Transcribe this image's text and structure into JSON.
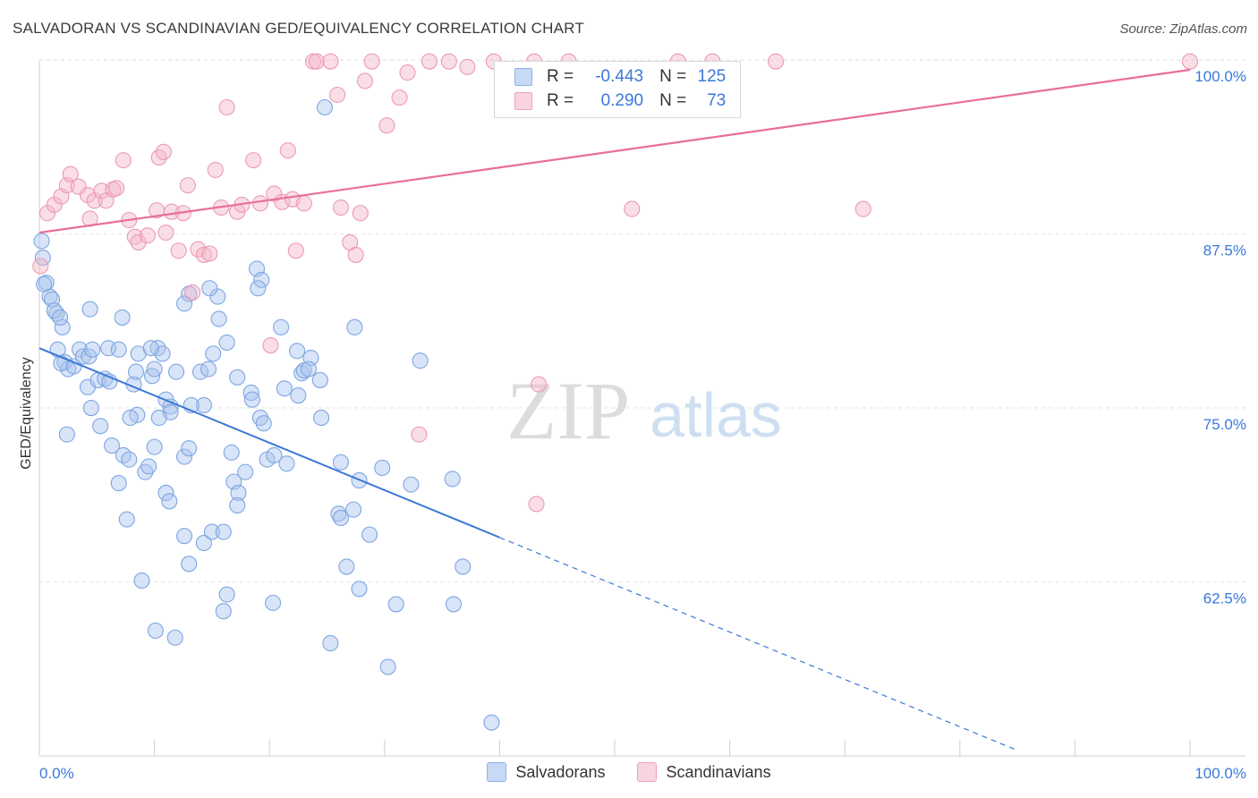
{
  "title": "SALVADORAN VS SCANDINAVIAN GED/EQUIVALENCY CORRELATION CHART",
  "source": "Source: ZipAtlas.com",
  "watermark": {
    "zip": "ZIP",
    "atlas": "atlas"
  },
  "legend": {
    "rows": [
      {
        "r_label": "R =",
        "r_value": "-0.443",
        "n_label": "N =",
        "n_value": "125",
        "color": "#a9c4ee"
      },
      {
        "r_label": "R =",
        "r_value": "0.290",
        "n_label": "N =",
        "n_value": "73",
        "color": "#f4b6c8"
      }
    ]
  },
  "bottom_legend": [
    {
      "label": "Salvadorans",
      "color": "#a9c4ee"
    },
    {
      "label": "Scandinavians",
      "color": "#f4b6c8"
    }
  ],
  "chart_data": {
    "type": "scatter",
    "title": "SALVADORAN VS SCANDINAVIAN GED/EQUIVALENCY CORRELATION CHART",
    "xlabel": "",
    "ylabel": "GED/Equivalency",
    "xlim": [
      0,
      100
    ],
    "ylim": [
      50,
      100
    ],
    "x_tick_labels": [
      "0.0%",
      "100.0%"
    ],
    "y_ticks": [
      62.5,
      75.0,
      87.5,
      100.0
    ],
    "y_tick_labels": [
      "62.5%",
      "75.0%",
      "87.5%",
      "100.0%"
    ],
    "grid": true,
    "legend_position": "top-center",
    "colors": {
      "salvadorans": "#3a78d6",
      "scandinavians": "#e86f98"
    },
    "series": [
      {
        "name": "Salvadorans",
        "trend": {
          "x0": 0,
          "y0": 79.3,
          "x1": 40,
          "y1": 65.7,
          "dash_to_x": 85,
          "dash_to_y": 50.4
        },
        "points": [
          [
            0.2,
            87.0
          ],
          [
            0.3,
            85.8
          ],
          [
            0.6,
            84.0
          ],
          [
            0.9,
            83.0
          ],
          [
            1.1,
            82.8
          ],
          [
            1.5,
            81.8
          ],
          [
            1.3,
            82.0
          ],
          [
            2.0,
            80.8
          ],
          [
            1.6,
            79.2
          ],
          [
            2.2,
            78.3
          ],
          [
            2.5,
            77.8
          ],
          [
            1.9,
            78.2
          ],
          [
            3.5,
            79.2
          ],
          [
            3.0,
            78.0
          ],
          [
            3.8,
            78.7
          ],
          [
            4.3,
            78.7
          ],
          [
            4.6,
            79.2
          ],
          [
            4.2,
            76.5
          ],
          [
            6.0,
            79.3
          ],
          [
            5.1,
            77.0
          ],
          [
            5.7,
            77.1
          ],
          [
            6.1,
            76.9
          ],
          [
            4.5,
            75.0
          ],
          [
            8.2,
            76.7
          ],
          [
            8.5,
            74.5
          ],
          [
            7.9,
            74.3
          ],
          [
            9.8,
            77.3
          ],
          [
            10.3,
            79.3
          ],
          [
            10.7,
            78.9
          ],
          [
            8.4,
            77.6
          ],
          [
            10.0,
            77.8
          ],
          [
            11.0,
            75.6
          ],
          [
            11.9,
            77.6
          ],
          [
            11.4,
            75.1
          ],
          [
            11.4,
            74.7
          ],
          [
            14.0,
            77.6
          ],
          [
            15.1,
            78.9
          ],
          [
            14.3,
            75.2
          ],
          [
            13.2,
            75.2
          ],
          [
            10.4,
            74.3
          ],
          [
            14.7,
            77.8
          ],
          [
            16.3,
            79.7
          ],
          [
            17.2,
            77.2
          ],
          [
            18.4,
            76.1
          ],
          [
            19.2,
            74.3
          ],
          [
            18.5,
            75.6
          ],
          [
            21.3,
            76.4
          ],
          [
            22.8,
            77.5
          ],
          [
            22.5,
            75.9
          ],
          [
            22.4,
            79.1
          ],
          [
            21.0,
            80.8
          ],
          [
            23.6,
            78.6
          ],
          [
            24.4,
            77.0
          ],
          [
            24.5,
            74.3
          ],
          [
            23.0,
            77.7
          ],
          [
            23.4,
            77.8
          ],
          [
            19.5,
            73.9
          ],
          [
            19.8,
            71.3
          ],
          [
            20.4,
            71.6
          ],
          [
            21.5,
            71.0
          ],
          [
            2.4,
            73.1
          ],
          [
            5.3,
            73.7
          ],
          [
            6.3,
            72.3
          ],
          [
            7.3,
            71.6
          ],
          [
            7.8,
            71.3
          ],
          [
            10.0,
            72.2
          ],
          [
            12.6,
            71.5
          ],
          [
            13.0,
            72.1
          ],
          [
            16.7,
            71.8
          ],
          [
            6.9,
            69.6
          ],
          [
            9.2,
            70.4
          ],
          [
            9.5,
            70.8
          ],
          [
            11.0,
            68.9
          ],
          [
            11.3,
            68.3
          ],
          [
            16.9,
            69.7
          ],
          [
            17.3,
            68.9
          ],
          [
            17.2,
            68.0
          ],
          [
            17.9,
            70.4
          ],
          [
            26.2,
            71.1
          ],
          [
            27.8,
            69.8
          ],
          [
            29.8,
            70.7
          ],
          [
            32.3,
            69.5
          ],
          [
            35.9,
            69.9
          ],
          [
            26.0,
            67.4
          ],
          [
            26.2,
            67.1
          ],
          [
            27.3,
            67.7
          ],
          [
            7.6,
            67.0
          ],
          [
            12.6,
            65.8
          ],
          [
            14.3,
            65.3
          ],
          [
            15.0,
            66.1
          ],
          [
            16.0,
            66.1
          ],
          [
            28.7,
            65.9
          ],
          [
            13.0,
            63.8
          ],
          [
            8.9,
            62.6
          ],
          [
            26.7,
            63.6
          ],
          [
            27.8,
            62.0
          ],
          [
            36.8,
            63.6
          ],
          [
            16.3,
            61.6
          ],
          [
            20.3,
            61.0
          ],
          [
            31.0,
            60.9
          ],
          [
            36.0,
            60.9
          ],
          [
            16.0,
            60.4
          ],
          [
            10.1,
            59.0
          ],
          [
            11.8,
            58.5
          ],
          [
            25.3,
            58.1
          ],
          [
            30.3,
            56.4
          ],
          [
            39.3,
            52.4
          ],
          [
            24.8,
            96.6
          ],
          [
            13.0,
            83.2
          ],
          [
            15.5,
            83.0
          ],
          [
            14.8,
            83.6
          ],
          [
            12.6,
            82.5
          ],
          [
            15.6,
            81.4
          ],
          [
            18.9,
            85.0
          ],
          [
            19.3,
            84.2
          ],
          [
            19.0,
            83.6
          ],
          [
            27.4,
            80.8
          ],
          [
            33.1,
            78.4
          ],
          [
            7.2,
            81.5
          ],
          [
            4.4,
            82.1
          ],
          [
            1.8,
            81.5
          ],
          [
            0.4,
            83.9
          ],
          [
            8.6,
            78.9
          ],
          [
            6.9,
            79.2
          ],
          [
            9.7,
            79.3
          ]
        ]
      },
      {
        "name": "Scandinavians",
        "trend": {
          "x0": 0,
          "y0": 87.6,
          "x1": 100,
          "y1": 99.3
        },
        "points": [
          [
            0.1,
            85.2
          ],
          [
            0.7,
            89.0
          ],
          [
            1.3,
            89.6
          ],
          [
            1.9,
            90.2
          ],
          [
            2.4,
            91.0
          ],
          [
            2.7,
            91.8
          ],
          [
            3.4,
            90.9
          ],
          [
            4.2,
            90.3
          ],
          [
            4.4,
            88.6
          ],
          [
            4.8,
            89.9
          ],
          [
            5.4,
            90.6
          ],
          [
            5.8,
            89.9
          ],
          [
            6.4,
            90.7
          ],
          [
            6.7,
            90.8
          ],
          [
            7.3,
            92.8
          ],
          [
            7.8,
            88.5
          ],
          [
            8.3,
            87.3
          ],
          [
            8.6,
            86.9
          ],
          [
            9.4,
            87.4
          ],
          [
            10.4,
            93.0
          ],
          [
            10.2,
            89.2
          ],
          [
            10.8,
            93.4
          ],
          [
            11.0,
            87.6
          ],
          [
            11.5,
            89.1
          ],
          [
            12.1,
            86.3
          ],
          [
            12.5,
            89.0
          ],
          [
            12.9,
            91.0
          ],
          [
            13.3,
            83.3
          ],
          [
            13.8,
            86.4
          ],
          [
            14.3,
            86.0
          ],
          [
            14.8,
            86.1
          ],
          [
            15.3,
            92.1
          ],
          [
            15.8,
            89.4
          ],
          [
            16.3,
            96.6
          ],
          [
            17.2,
            89.1
          ],
          [
            17.6,
            89.6
          ],
          [
            18.6,
            92.8
          ],
          [
            19.2,
            89.7
          ],
          [
            20.4,
            90.4
          ],
          [
            21.1,
            89.8
          ],
          [
            21.6,
            93.5
          ],
          [
            22.0,
            90.0
          ],
          [
            22.3,
            86.3
          ],
          [
            23.0,
            89.7
          ],
          [
            23.8,
            99.9
          ],
          [
            24.1,
            99.9
          ],
          [
            25.3,
            99.9
          ],
          [
            25.9,
            97.5
          ],
          [
            26.2,
            89.4
          ],
          [
            27.0,
            86.9
          ],
          [
            27.5,
            86.0
          ],
          [
            27.9,
            89.0
          ],
          [
            28.3,
            98.5
          ],
          [
            28.9,
            99.9
          ],
          [
            30.2,
            95.3
          ],
          [
            31.3,
            97.3
          ],
          [
            32.0,
            99.1
          ],
          [
            33.9,
            99.9
          ],
          [
            35.6,
            99.9
          ],
          [
            37.2,
            99.5
          ],
          [
            39.5,
            99.9
          ],
          [
            43.0,
            99.9
          ],
          [
            46.0,
            99.9
          ],
          [
            51.5,
            89.3
          ],
          [
            55.5,
            99.9
          ],
          [
            58.5,
            99.9
          ],
          [
            64.0,
            99.9
          ],
          [
            71.6,
            89.3
          ],
          [
            100.0,
            99.9
          ],
          [
            20.1,
            79.5
          ],
          [
            33.0,
            73.1
          ],
          [
            43.4,
            76.7
          ],
          [
            43.2,
            68.1
          ]
        ]
      }
    ]
  }
}
